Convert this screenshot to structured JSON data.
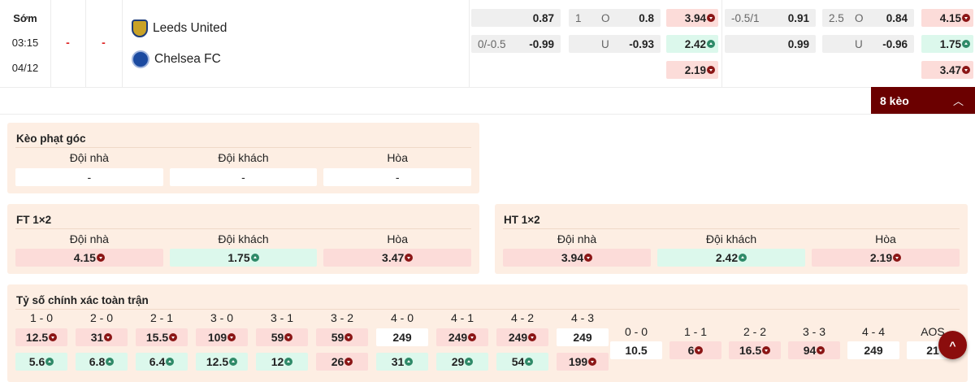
{
  "match": {
    "status": "Sớm",
    "time": "03:15",
    "date": "04/12",
    "score_ft": "-",
    "score_ht": "-",
    "home": "Leeds United",
    "away": "Chelsea FC"
  },
  "odds_ft": {
    "handicap": {
      "home_line": "",
      "home": "0.87",
      "away_line": "0/-0.5",
      "away": "-0.99"
    },
    "overunder": {
      "line": "1",
      "over_label": "O",
      "over": "0.8",
      "under_label": "U",
      "under": "-0.93"
    },
    "x12": [
      {
        "v": "3.94",
        "dir": "down"
      },
      {
        "v": "2.42",
        "dir": "up"
      },
      {
        "v": "2.19",
        "dir": "down"
      }
    ]
  },
  "odds_2": {
    "handicap": {
      "home_line": "-0.5/1",
      "home": "0.91",
      "away_line": "",
      "away": "0.99"
    },
    "overunder": {
      "line": "2.5",
      "over_label": "O",
      "over": "0.84",
      "under_label": "U",
      "under": "-0.96"
    },
    "x12": [
      {
        "v": "4.15",
        "dir": "down"
      },
      {
        "v": "1.75",
        "dir": "up"
      },
      {
        "v": "3.47",
        "dir": "down"
      }
    ]
  },
  "more_button": "8 kèo",
  "corner": {
    "title": "Kèo phạt góc",
    "headers": [
      "Đội nhà",
      "Đội khách",
      "Hòa"
    ],
    "values": [
      "-",
      "-",
      "-"
    ]
  },
  "ft1x2": {
    "title": "FT 1×2",
    "headers": [
      "Đội nhà",
      "Đội khách",
      "Hòa"
    ],
    "values": [
      {
        "v": "4.15",
        "dir": "down"
      },
      {
        "v": "1.75",
        "dir": "up"
      },
      {
        "v": "3.47",
        "dir": "down"
      }
    ]
  },
  "ht1x2": {
    "title": "HT 1×2",
    "headers": [
      "Đội nhà",
      "Đội khách",
      "Hòa"
    ],
    "values": [
      {
        "v": "3.94",
        "dir": "down"
      },
      {
        "v": "2.42",
        "dir": "up"
      },
      {
        "v": "2.19",
        "dir": "down"
      }
    ]
  },
  "correct_score": {
    "title": "Tỷ số chính xác toàn trận",
    "pairs": [
      {
        "score": "1 - 0",
        "home": {
          "v": "12.5",
          "dir": "down"
        },
        "away": {
          "v": "5.6",
          "dir": "up"
        }
      },
      {
        "score": "2 - 0",
        "home": {
          "v": "31",
          "dir": "down"
        },
        "away": {
          "v": "6.8",
          "dir": "up"
        }
      },
      {
        "score": "2 - 1",
        "home": {
          "v": "15.5",
          "dir": "down"
        },
        "away": {
          "v": "6.4",
          "dir": "up"
        }
      },
      {
        "score": "3 - 0",
        "home": {
          "v": "109",
          "dir": "down"
        },
        "away": {
          "v": "12.5",
          "dir": "up"
        }
      },
      {
        "score": "3 - 1",
        "home": {
          "v": "59",
          "dir": "down"
        },
        "away": {
          "v": "12",
          "dir": "up"
        }
      },
      {
        "score": "3 - 2",
        "home": {
          "v": "59",
          "dir": "down"
        },
        "away": {
          "v": "26",
          "dir": "down"
        }
      },
      {
        "score": "4 - 0",
        "home": {
          "v": "249",
          "dir": ""
        },
        "away": {
          "v": "31",
          "dir": "up"
        }
      },
      {
        "score": "4 - 1",
        "home": {
          "v": "249",
          "dir": "down"
        },
        "away": {
          "v": "29",
          "dir": "up"
        }
      },
      {
        "score": "4 - 2",
        "home": {
          "v": "249",
          "dir": "down"
        },
        "away": {
          "v": "54",
          "dir": "up"
        }
      },
      {
        "score": "4 - 3",
        "home": {
          "v": "249",
          "dir": ""
        },
        "away": {
          "v": "199",
          "dir": "down"
        }
      }
    ],
    "draws": [
      {
        "score": "0 - 0",
        "v": "10.5",
        "dir": ""
      },
      {
        "score": "1 - 1",
        "v": "6",
        "dir": "down"
      },
      {
        "score": "2 - 2",
        "v": "16.5",
        "dir": "down"
      },
      {
        "score": "3 - 3",
        "v": "94",
        "dir": "down"
      },
      {
        "score": "4 - 4",
        "v": "249",
        "dir": ""
      },
      {
        "score": "AOS",
        "v": "21",
        "dir": ""
      }
    ]
  },
  "colors": {
    "accent": "#6b0000",
    "pink": "#fcdcd9",
    "green": "#dcf8ec",
    "panel": "#fdeee3"
  }
}
